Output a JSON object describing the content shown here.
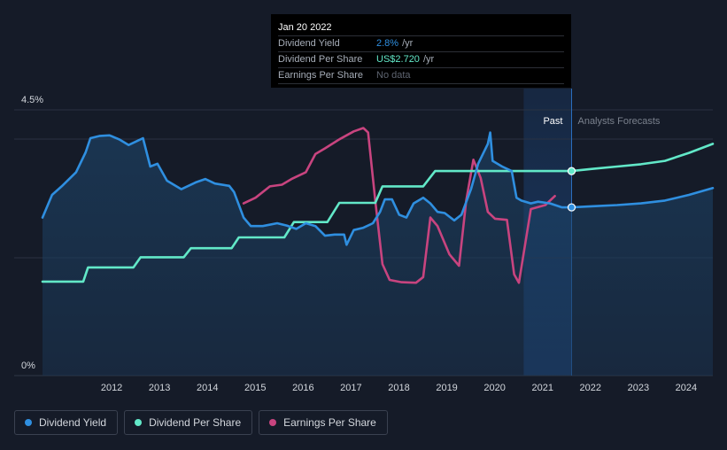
{
  "tooltip": {
    "date": "Jan 20 2022",
    "rows": [
      {
        "label": "Dividend Yield",
        "value": "2.8%",
        "unit": "/yr"
      },
      {
        "label": "Dividend Per Share",
        "value": "US$2.720",
        "unit": "/yr"
      },
      {
        "label": "Earnings Per Share",
        "value": "No data",
        "unit": ""
      }
    ]
  },
  "region_labels": {
    "past": "Past",
    "forecast": "Analysts Forecasts"
  },
  "colors": {
    "dividend_yield": "#2f8fe0",
    "dividend_per_share": "#62e8c8",
    "earnings_per_share": "#c8447f",
    "background": "#151b28",
    "past_highlight": "#1a3f70"
  },
  "chart_data": {
    "type": "line",
    "y_axis": {
      "ticks": [
        "4.5%",
        "0%"
      ],
      "range": [
        0,
        4.5
      ]
    },
    "x_axis": {
      "range": [
        2011.0,
        2025.0
      ],
      "ticks": [
        "2012",
        "2013",
        "2014",
        "2015",
        "2016",
        "2017",
        "2018",
        "2019",
        "2020",
        "2021",
        "2022",
        "2023",
        "2024"
      ]
    },
    "divider_x": 2022.05,
    "past_band_start": 2021.05,
    "tooltip_x": 2022.05,
    "legend_placement": "bottom-left",
    "series": [
      {
        "name": "Dividend Yield",
        "key": "dividend_yield",
        "fill": true,
        "points": [
          [
            2011.0,
            2.6
          ],
          [
            2011.2,
            3.0
          ],
          [
            2011.4,
            3.15
          ],
          [
            2011.7,
            3.4
          ],
          [
            2011.9,
            3.75
          ],
          [
            2012.0,
            4.0
          ],
          [
            2012.2,
            4.04
          ],
          [
            2012.4,
            4.05
          ],
          [
            2012.6,
            3.98
          ],
          [
            2012.8,
            3.88
          ],
          [
            2013.0,
            3.96
          ],
          [
            2013.1,
            4.0
          ],
          [
            2013.25,
            3.5
          ],
          [
            2013.4,
            3.55
          ],
          [
            2013.6,
            3.25
          ],
          [
            2013.9,
            3.1
          ],
          [
            2014.2,
            3.22
          ],
          [
            2014.4,
            3.28
          ],
          [
            2014.6,
            3.2
          ],
          [
            2014.9,
            3.16
          ],
          [
            2015.0,
            3.05
          ],
          [
            2015.2,
            2.6
          ],
          [
            2015.35,
            2.45
          ],
          [
            2015.6,
            2.45
          ],
          [
            2015.9,
            2.5
          ],
          [
            2016.1,
            2.46
          ],
          [
            2016.3,
            2.4
          ],
          [
            2016.5,
            2.5
          ],
          [
            2016.7,
            2.45
          ],
          [
            2016.9,
            2.28
          ],
          [
            2017.1,
            2.3
          ],
          [
            2017.3,
            2.3
          ],
          [
            2017.35,
            2.12
          ],
          [
            2017.5,
            2.38
          ],
          [
            2017.7,
            2.42
          ],
          [
            2017.9,
            2.5
          ],
          [
            2018.05,
            2.7
          ],
          [
            2018.15,
            2.92
          ],
          [
            2018.3,
            2.92
          ],
          [
            2018.45,
            2.65
          ],
          [
            2018.6,
            2.6
          ],
          [
            2018.75,
            2.85
          ],
          [
            2018.95,
            2.95
          ],
          [
            2019.1,
            2.85
          ],
          [
            2019.25,
            2.7
          ],
          [
            2019.4,
            2.68
          ],
          [
            2019.6,
            2.55
          ],
          [
            2019.75,
            2.65
          ],
          [
            2019.95,
            3.1
          ],
          [
            2020.1,
            3.55
          ],
          [
            2020.3,
            3.9
          ],
          [
            2020.35,
            4.1
          ],
          [
            2020.4,
            3.6
          ],
          [
            2020.6,
            3.5
          ],
          [
            2020.8,
            3.42
          ],
          [
            2020.9,
            2.95
          ],
          [
            2021.0,
            2.9
          ],
          [
            2021.2,
            2.85
          ],
          [
            2021.35,
            2.88
          ],
          [
            2021.6,
            2.85
          ],
          [
            2021.85,
            2.78
          ],
          [
            2022.05,
            2.78
          ],
          [
            2022.5,
            2.8
          ],
          [
            2023.0,
            2.82
          ],
          [
            2023.5,
            2.85
          ],
          [
            2024.0,
            2.9
          ],
          [
            2024.5,
            3.0
          ],
          [
            2025.0,
            3.12
          ]
        ]
      },
      {
        "name": "Dividend Per Share",
        "key": "dividend_per_share",
        "fill": false,
        "points": [
          [
            2011.0,
            1.47
          ],
          [
            2011.85,
            1.47
          ],
          [
            2011.95,
            1.72
          ],
          [
            2012.9,
            1.72
          ],
          [
            2013.05,
            1.9
          ],
          [
            2013.95,
            1.9
          ],
          [
            2014.1,
            2.06
          ],
          [
            2014.95,
            2.06
          ],
          [
            2015.1,
            2.25
          ],
          [
            2016.05,
            2.25
          ],
          [
            2016.25,
            2.52
          ],
          [
            2016.95,
            2.52
          ],
          [
            2017.2,
            2.86
          ],
          [
            2017.95,
            2.86
          ],
          [
            2018.1,
            3.15
          ],
          [
            2018.95,
            3.15
          ],
          [
            2019.2,
            3.42
          ],
          [
            2022.05,
            3.42
          ],
          [
            2022.5,
            3.46
          ],
          [
            2023.0,
            3.5
          ],
          [
            2023.5,
            3.54
          ],
          [
            2024.0,
            3.6
          ],
          [
            2024.5,
            3.74
          ],
          [
            2025.0,
            3.9
          ]
        ]
      },
      {
        "name": "Earnings Per Share",
        "key": "earnings_per_share",
        "fill": false,
        "points": [
          [
            2015.2,
            2.85
          ],
          [
            2015.45,
            2.95
          ],
          [
            2015.75,
            3.15
          ],
          [
            2016.0,
            3.18
          ],
          [
            2016.2,
            3.28
          ],
          [
            2016.5,
            3.4
          ],
          [
            2016.7,
            3.72
          ],
          [
            2016.9,
            3.82
          ],
          [
            2017.2,
            3.98
          ],
          [
            2017.5,
            4.12
          ],
          [
            2017.7,
            4.18
          ],
          [
            2017.8,
            4.1
          ],
          [
            2017.95,
            2.9
          ],
          [
            2018.1,
            1.78
          ],
          [
            2018.25,
            1.5
          ],
          [
            2018.5,
            1.46
          ],
          [
            2018.8,
            1.45
          ],
          [
            2018.95,
            1.55
          ],
          [
            2019.1,
            2.6
          ],
          [
            2019.25,
            2.45
          ],
          [
            2019.5,
            1.95
          ],
          [
            2019.7,
            1.75
          ],
          [
            2019.85,
            2.9
          ],
          [
            2020.0,
            3.62
          ],
          [
            2020.15,
            3.3
          ],
          [
            2020.3,
            2.7
          ],
          [
            2020.45,
            2.58
          ],
          [
            2020.7,
            2.56
          ],
          [
            2020.85,
            1.6
          ],
          [
            2020.95,
            1.45
          ],
          [
            2021.2,
            2.75
          ],
          [
            2021.5,
            2.82
          ],
          [
            2021.7,
            2.98
          ]
        ]
      }
    ],
    "markers": [
      {
        "series": "dividend_per_share",
        "x": 2022.05,
        "y": 3.42
      },
      {
        "series": "dividend_yield",
        "x": 2022.05,
        "y": 2.78
      }
    ]
  }
}
